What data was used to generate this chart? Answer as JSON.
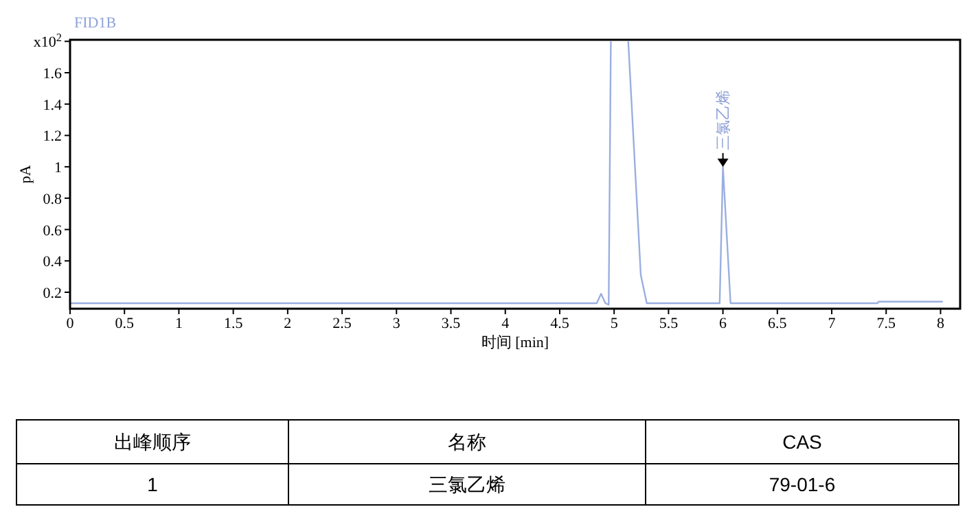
{
  "chart_data": [
    {
      "type": "line",
      "title": "FID1B",
      "xlabel": "时间 [min]",
      "ylabel": "pA",
      "series": [
        {
          "color": "#9aaee0",
          "x": [
            0,
            4.84,
            4.88,
            4.92,
            4.95,
            4.97,
            5.05,
            5.13,
            5.245,
            5.3,
            5.97,
            6.0,
            6.07,
            7.42,
            7.43,
            8.02
          ],
          "values": [
            0.13,
            0.13,
            0.19,
            0.13,
            0.12,
            1.8,
            null,
            1.8,
            0.31,
            0.13,
            0.13,
            1.0,
            0.13,
            0.13,
            0.14,
            0.14
          ]
        }
      ],
      "xlim": [
        0,
        8.18
      ],
      "xticks": [
        0,
        0.5,
        1,
        1.5,
        2,
        2.5,
        3,
        3.5,
        4,
        4.5,
        5,
        5.5,
        6,
        6.5,
        7,
        7.5,
        8
      ],
      "ylim": [
        0.095,
        1.81
      ],
      "yticks": [
        0.2,
        0.4,
        0.6,
        0.8,
        1,
        1.2,
        1.4,
        1.6,
        {
          "value": 1.8,
          "label": "x10$^{2}$"
        }
      ],
      "annotations": [
        {
          "text": "三氯乙烯",
          "x": 6.0,
          "y": 1.0
        }
      ],
      "grid": false,
      "line_style": "solid"
    },
    {
      "type": "other",
      "annotations": [
        "出峰顺序",
        "名称",
        "CAS",
        "1",
        "三氯乙烯",
        "79-01-6"
      ]
    }
  ]
}
